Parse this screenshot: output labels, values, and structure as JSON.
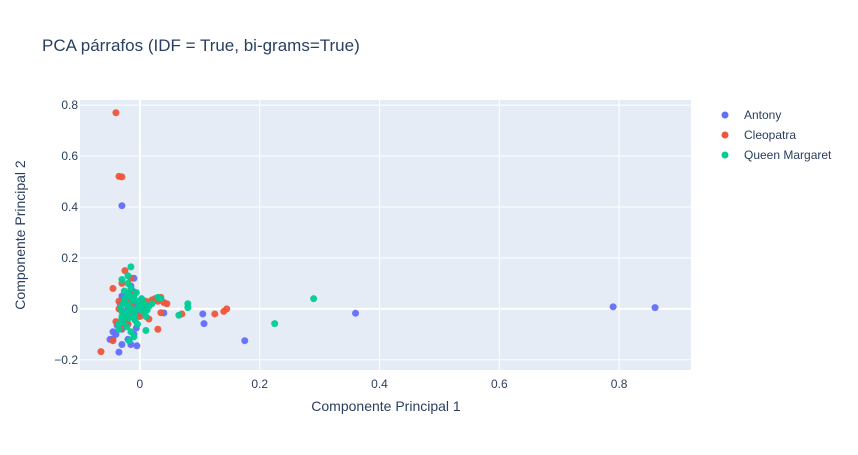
{
  "chart_data": {
    "type": "scatter",
    "title": "PCA párrafos (IDF = True, bi-grams=True)",
    "xlabel": "Componente Principal 1",
    "ylabel": "Componente Principal 2",
    "xlim": [
      -0.1,
      0.92
    ],
    "ylim": [
      -0.24,
      0.82
    ],
    "xticks": [
      0,
      0.2,
      0.4,
      0.6,
      0.8
    ],
    "yticks": [
      -0.2,
      0,
      0.2,
      0.4,
      0.6,
      0.8
    ],
    "xtick_labels": [
      "0",
      "0.2",
      "0.4",
      "0.6",
      "0.8"
    ],
    "ytick_labels": [
      "−0.2",
      "0",
      "0.2",
      "0.4",
      "0.6",
      "0.8"
    ],
    "grid": true,
    "legend_position": "top-right",
    "background_color": "#E5ECF6",
    "series": [
      {
        "name": "Antony",
        "color": "#636EFA",
        "points": [
          [
            0.86,
            0.005
          ],
          [
            0.79,
            0.008
          ],
          [
            0.36,
            -0.017
          ],
          [
            0.175,
            -0.125
          ],
          [
            0.107,
            -0.058
          ],
          [
            0.105,
            -0.02
          ],
          [
            0.04,
            -0.016
          ],
          [
            -0.03,
            0.405
          ],
          [
            -0.035,
            -0.17
          ],
          [
            -0.045,
            -0.118
          ],
          [
            -0.04,
            -0.1
          ],
          [
            -0.05,
            -0.12
          ],
          [
            -0.03,
            -0.14
          ],
          [
            -0.015,
            -0.14
          ],
          [
            -0.005,
            -0.145
          ],
          [
            -0.02,
            -0.12
          ],
          [
            -0.01,
            -0.1
          ],
          [
            -0.03,
            -0.08
          ],
          [
            -0.02,
            -0.06
          ],
          [
            -0.025,
            -0.05
          ],
          [
            -0.015,
            -0.03
          ],
          [
            -0.028,
            -0.01
          ],
          [
            -0.02,
            0.0
          ],
          [
            -0.01,
            0.01
          ],
          [
            -0.025,
            0.03
          ],
          [
            -0.03,
            0.05
          ],
          [
            -0.018,
            0.06
          ],
          [
            -0.012,
            0.07
          ],
          [
            -0.015,
            0.09
          ],
          [
            -0.01,
            0.12
          ],
          [
            -0.008,
            -0.04
          ],
          [
            0.0,
            -0.02
          ],
          [
            0.005,
            0.0
          ],
          [
            0.01,
            -0.005
          ],
          [
            -0.005,
            0.02
          ],
          [
            -0.038,
            -0.065
          ],
          [
            -0.022,
            -0.025
          ],
          [
            -0.012,
            -0.015
          ],
          [
            -0.033,
            0.02
          ],
          [
            0.002,
            0.035
          ],
          [
            -0.045,
            -0.09
          ],
          [
            0.012,
            0.015
          ],
          [
            -0.006,
            -0.075
          ],
          [
            -0.028,
            0.04
          ]
        ]
      },
      {
        "name": "Cleopatra",
        "color": "#EF553B",
        "points": [
          [
            -0.04,
            0.77
          ],
          [
            -0.035,
            0.52
          ],
          [
            -0.03,
            0.518
          ],
          [
            -0.065,
            -0.168
          ],
          [
            -0.045,
            -0.125
          ],
          [
            0.145,
            0.0
          ],
          [
            0.14,
            -0.01
          ],
          [
            0.125,
            -0.02
          ],
          [
            0.07,
            -0.02
          ],
          [
            0.035,
            -0.015
          ],
          [
            0.03,
            -0.08
          ],
          [
            0.015,
            -0.04
          ],
          [
            0.02,
            0.035
          ],
          [
            0.03,
            0.03
          ],
          [
            0.01,
            0.03
          ],
          [
            -0.02,
            0.03
          ],
          [
            -0.035,
            0.03
          ],
          [
            -0.03,
            0.1
          ],
          [
            -0.025,
            0.15
          ],
          [
            -0.015,
            0.12
          ],
          [
            -0.035,
            0.0
          ],
          [
            -0.03,
            -0.01
          ],
          [
            -0.025,
            -0.035
          ],
          [
            -0.04,
            -0.05
          ],
          [
            -0.045,
            0.08
          ],
          [
            0.0,
            -0.03
          ],
          [
            -0.008,
            0.0
          ],
          [
            -0.012,
            -0.015
          ],
          [
            0.005,
            0.01
          ],
          [
            -0.02,
            -0.06
          ],
          [
            -0.01,
            0.06
          ],
          [
            0.025,
            0.04
          ],
          [
            0.04,
            0.025
          ],
          [
            0.035,
            0.045
          ],
          [
            -0.03,
            -0.075
          ],
          [
            -0.015,
            0.02
          ],
          [
            0.008,
            -0.01
          ],
          [
            0.045,
            0.02
          ]
        ]
      },
      {
        "name": "Queen Margaret",
        "color": "#00CC96",
        "points": [
          [
            0.29,
            0.04
          ],
          [
            0.225,
            -0.058
          ],
          [
            0.08,
            0.02
          ],
          [
            0.08,
            0.005
          ],
          [
            0.065,
            -0.025
          ],
          [
            0.035,
            0.04
          ],
          [
            0.03,
            0.045
          ],
          [
            0.01,
            -0.085
          ],
          [
            -0.015,
            0.165
          ],
          [
            -0.03,
            0.115
          ],
          [
            -0.02,
            0.13
          ],
          [
            -0.02,
            0.1
          ],
          [
            -0.015,
            0.08
          ],
          [
            -0.02,
            0.06
          ],
          [
            -0.025,
            0.04
          ],
          [
            -0.028,
            0.02
          ],
          [
            -0.03,
            -0.01
          ],
          [
            -0.03,
            -0.03
          ],
          [
            -0.028,
            -0.05
          ],
          [
            -0.022,
            -0.07
          ],
          [
            -0.015,
            -0.09
          ],
          [
            -0.01,
            -0.11
          ],
          [
            -0.018,
            -0.125
          ],
          [
            -0.035,
            -0.06
          ],
          [
            -0.035,
            -0.08
          ],
          [
            -0.01,
            0.05
          ],
          [
            -0.005,
            0.03
          ],
          [
            0.0,
            0.01
          ],
          [
            0.005,
            -0.01
          ],
          [
            -0.01,
            -0.02
          ],
          [
            0.008,
            0.02
          ],
          [
            0.015,
            0.01
          ],
          [
            0.01,
            -0.03
          ],
          [
            -0.015,
            0.0
          ],
          [
            -0.02,
            0.015
          ],
          [
            -0.025,
            -0.02
          ],
          [
            -0.008,
            -0.045
          ],
          [
            -0.005,
            0.0
          ],
          [
            0.003,
            0.04
          ],
          [
            -0.012,
            0.035
          ],
          [
            -0.018,
            -0.035
          ],
          [
            0.02,
            0.02
          ],
          [
            -0.032,
            0.005
          ],
          [
            -0.026,
            0.07
          ],
          [
            -0.004,
            -0.06
          ],
          [
            0.012,
            -0.005
          ],
          [
            -0.016,
            0.045
          ],
          [
            -0.009,
            -0.028
          ],
          [
            0.001,
            0.018
          ],
          [
            -0.021,
            -0.012
          ],
          [
            -0.03,
            -0.04
          ],
          [
            -0.006,
            0.064
          ]
        ]
      }
    ]
  }
}
